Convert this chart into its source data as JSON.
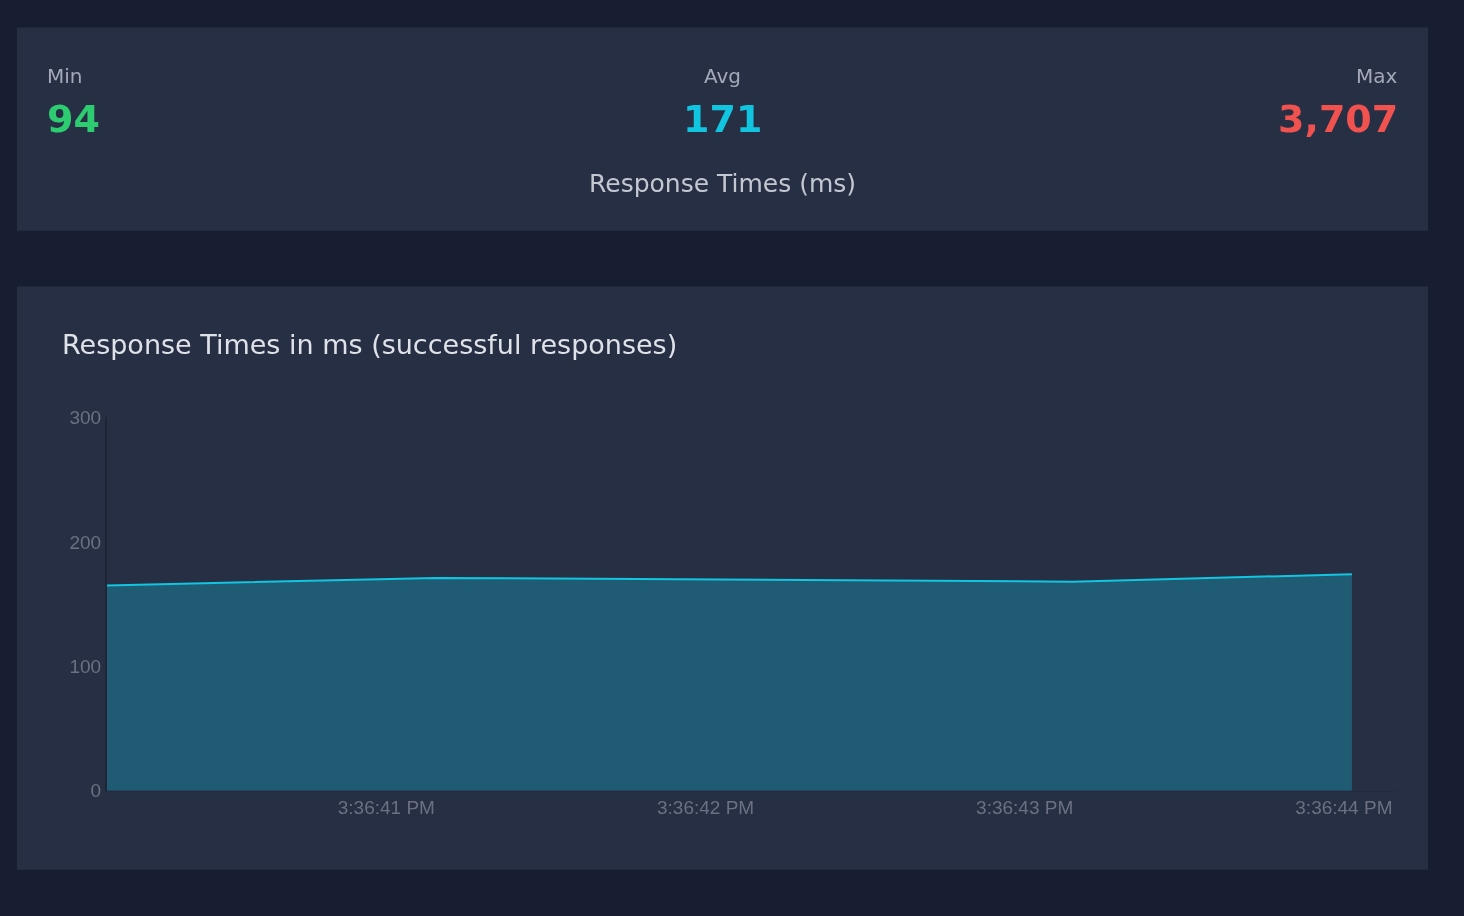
{
  "chart_data": [
    {
      "type": "other",
      "title": "Response Times (ms)",
      "annotations": [
        "Min",
        "94",
        "Avg",
        "171",
        "Max",
        "3,707"
      ]
    },
    {
      "type": "area",
      "title": "Response Times in ms (successful responses)",
      "x": [
        15.6111458,
        15.6114317,
        15.6119861,
        15.6122292
      ],
      "series": [
        {
          "color": "#12c5e0",
          "values": [
            165,
            171,
            168,
            174
          ]
        }
      ],
      "xlim": [
        15.6111458,
        15.6122667
      ],
      "xticks": [
        {
          "value": 15.6113889,
          "label": "3:36:41 PM"
        },
        {
          "value": 15.6116667,
          "label": "3:36:42 PM"
        },
        {
          "value": 15.6119444,
          "label": "3:36:43 PM"
        },
        {
          "value": 15.6122222,
          "label": "3:36:44 PM"
        }
      ],
      "ylim": [
        0,
        300
      ],
      "yticks": [
        0,
        100,
        200,
        300
      ],
      "grid": false,
      "marker": "none"
    }
  ]
}
